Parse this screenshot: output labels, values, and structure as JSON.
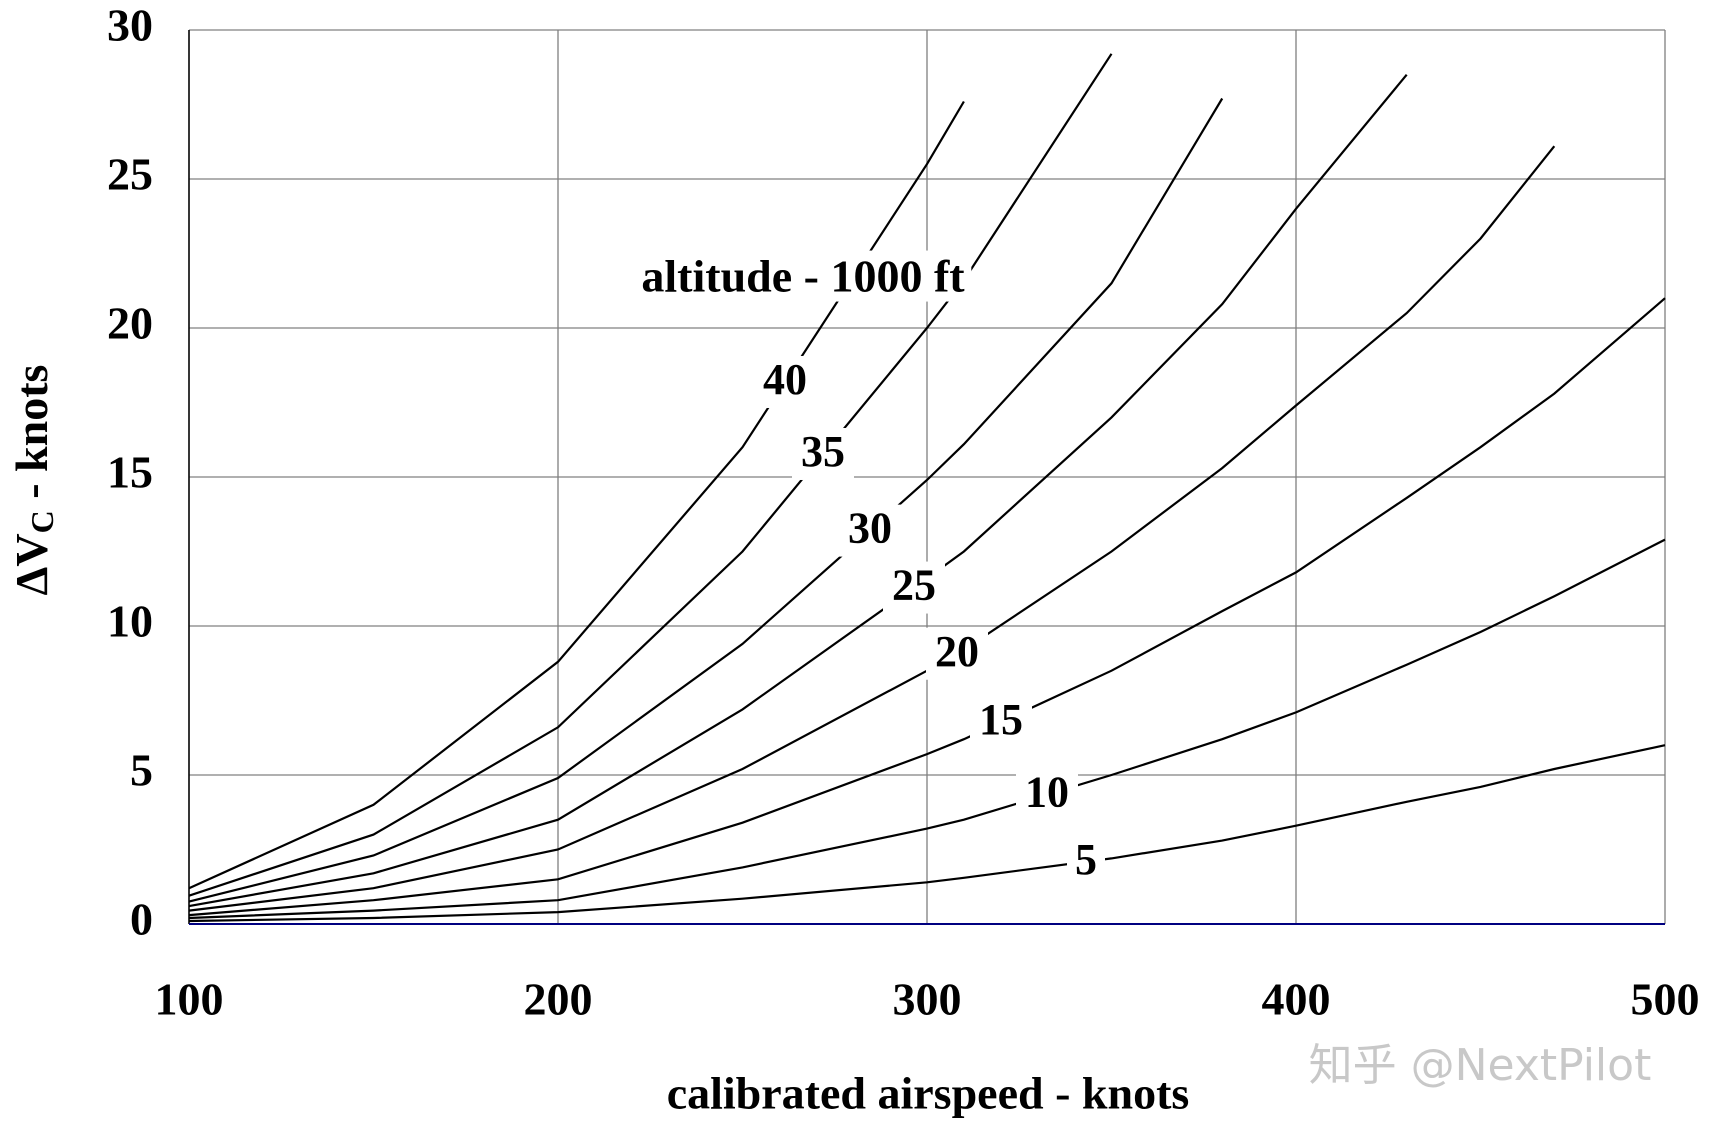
{
  "chart_data": {
    "type": "line",
    "annotation": "altitude - 1000 ft",
    "xlabel": "calibrated airspeed - knots",
    "ylabel": {
      "main": "ΔV",
      "sub": "C",
      "rest": " - knots"
    },
    "watermark": "知乎 @NextPilot",
    "x": [
      100,
      150,
      200,
      250,
      300,
      310,
      350,
      380,
      400,
      430,
      450,
      470,
      500
    ],
    "series": [
      {
        "name": null,
        "color": "#000080",
        "values": [
          0,
          0,
          0,
          0,
          0,
          0,
          0,
          0,
          0,
          0,
          0,
          0,
          0
        ]
      },
      {
        "name": "5",
        "color": "#000000",
        "values": [
          0.1,
          0.2,
          0.4,
          0.85,
          1.4,
          1.55,
          2.2,
          2.8,
          3.3,
          4.1,
          4.6,
          5.2,
          6.0
        ]
      },
      {
        "name": "10",
        "color": "#000000",
        "values": [
          0.2,
          0.45,
          0.8,
          1.9,
          3.2,
          3.5,
          5.0,
          6.2,
          7.1,
          8.7,
          9.8,
          11,
          12.9
        ]
      },
      {
        "name": "15",
        "color": "#000000",
        "values": [
          0.3,
          0.8,
          1.5,
          3.4,
          5.7,
          6.2,
          8.5,
          10.5,
          11.8,
          14.3,
          16,
          17.8,
          21
        ]
      },
      {
        "name": "20",
        "color": "#000000",
        "values": [
          0.45,
          1.2,
          2.5,
          5.2,
          8.5,
          9.2,
          12.5,
          15.3,
          17.4,
          20.5,
          23,
          26.1,
          null
        ]
      },
      {
        "name": "25",
        "color": "#000000",
        "values": [
          0.6,
          1.7,
          3.5,
          7.2,
          11.6,
          12.5,
          17,
          20.8,
          24,
          28.5,
          null,
          null,
          null
        ]
      },
      {
        "name": "30",
        "color": "#000000",
        "values": [
          0.75,
          2.3,
          4.9,
          9.4,
          14.9,
          16.1,
          21.5,
          27.7,
          null,
          null,
          null,
          null,
          null
        ]
      },
      {
        "name": "35",
        "color": "#000000",
        "values": [
          0.95,
          3.0,
          6.6,
          12.5,
          20,
          21.6,
          29.2,
          null,
          null,
          null,
          null,
          null,
          null
        ]
      },
      {
        "name": "40",
        "color": "#000000",
        "values": [
          1.2,
          4.0,
          8.8,
          16,
          25.5,
          27.6,
          null,
          null,
          null,
          null,
          null,
          null,
          null
        ]
      }
    ],
    "xlim": [
      100,
      500
    ],
    "xticks": [
      100,
      200,
      300,
      400,
      500
    ],
    "ylim": [
      0,
      30
    ],
    "yticks": [
      0,
      5,
      10,
      15,
      20,
      25,
      30
    ],
    "grid": true
  }
}
